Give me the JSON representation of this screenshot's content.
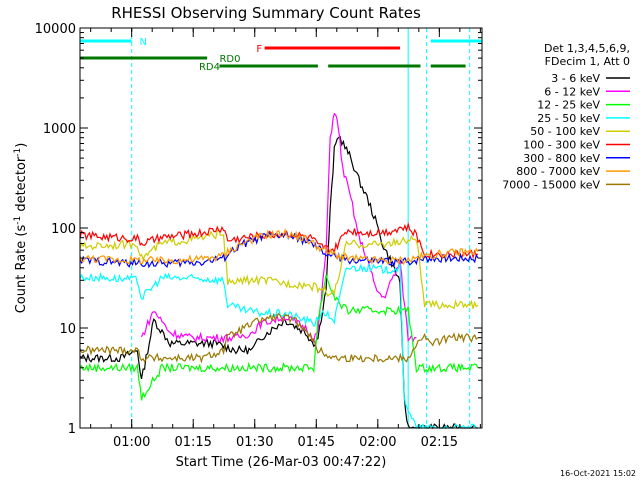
{
  "chart_data": {
    "type": "line",
    "title": "RHESSI Observing Summary Count Rates",
    "xlabel": "Start Time (26-Mar-03 00:47:22)",
    "ylabel_main": "Count Rate (s",
    "ylabel_sup1": "-1",
    "ylabel_mid": " detector",
    "ylabel_sup2": "-1",
    "ylabel_end": ")",
    "x_unit": "minutes since 00:47:22",
    "xlim": [
      0,
      98
    ],
    "ylim": [
      1,
      10000
    ],
    "yscale": "log",
    "x_ticks": [
      {
        "label": "01:00",
        "value": 12.6
      },
      {
        "label": "01:15",
        "value": 27.6
      },
      {
        "label": "01:30",
        "value": 42.6
      },
      {
        "label": "01:45",
        "value": 57.6
      },
      {
        "label": "02:00",
        "value": 72.6
      },
      {
        "label": "02:15",
        "value": 87.6
      }
    ],
    "y_ticks": [
      {
        "label": "1",
        "value": 1
      },
      {
        "label": "10",
        "value": 10
      },
      {
        "label": "100",
        "value": 100
      },
      {
        "label": "1000",
        "value": 1000
      },
      {
        "label": "10000",
        "value": 10000
      }
    ],
    "legend_header": [
      "Det 1,3,4,5,6,9,",
      "FDecim 1, Att 0"
    ],
    "legend_placement": "right",
    "series": [
      {
        "name": "3 - 6 keV",
        "color": "#000000",
        "x": [
          0,
          5,
          10,
          14,
          15,
          18,
          22,
          27,
          33,
          38,
          42,
          44,
          50,
          55,
          57,
          58,
          60,
          61,
          62,
          63,
          65,
          66,
          68,
          70,
          72,
          74,
          76,
          77,
          78,
          79,
          80,
          82,
          84,
          86,
          88,
          90,
          93,
          95,
          97
        ],
        "y": [
          5,
          5,
          5,
          6,
          3,
          12,
          7,
          7,
          7,
          6,
          6,
          8,
          12,
          9,
          7,
          8,
          25,
          150,
          600,
          850,
          600,
          500,
          300,
          200,
          120,
          65,
          45,
          35,
          30,
          2,
          1,
          1,
          1,
          1,
          1,
          1,
          1,
          1,
          1
        ]
      },
      {
        "name": "6 - 12 keV",
        "color": "#ff00ff",
        "x": [
          15,
          18,
          22,
          27,
          33,
          38,
          42,
          44,
          50,
          55,
          57,
          58,
          60,
          61,
          62,
          63,
          64,
          66,
          68,
          70,
          72,
          74,
          76,
          78,
          80,
          82
        ],
        "y": [
          8,
          15,
          9,
          8,
          8,
          8,
          9,
          11,
          13,
          10,
          8,
          9,
          60,
          800,
          1500,
          1000,
          400,
          200,
          80,
          50,
          25,
          20,
          30,
          45,
          8,
          8
        ]
      },
      {
        "name": "12 - 25 keV",
        "color": "#00ff00",
        "x": [
          0,
          10,
          14,
          15,
          20,
          30,
          35,
          36,
          40,
          45,
          50,
          55,
          57,
          58,
          59,
          60,
          61,
          63,
          65,
          80,
          82,
          84,
          86,
          90,
          97
        ],
        "y": [
          4,
          4,
          4,
          2,
          4,
          4,
          4,
          4,
          4,
          4,
          4,
          4,
          4,
          12,
          20,
          35,
          25,
          18,
          15,
          15,
          4,
          4,
          4,
          4,
          4
        ]
      },
      {
        "name": "25 - 50 keV",
        "color": "#00ffff",
        "x": [
          0,
          5,
          10,
          14,
          15,
          20,
          30,
          35,
          36,
          40,
          45,
          50,
          55,
          57,
          58,
          60,
          62,
          65,
          70,
          75,
          78,
          79,
          82,
          84,
          86,
          90,
          97
        ],
        "y": [
          32,
          32,
          31,
          30,
          20,
          32,
          31,
          30,
          17,
          15,
          14,
          14,
          12,
          11,
          13,
          14,
          12,
          40,
          40,
          38,
          40,
          2,
          1,
          1,
          1,
          1,
          1
        ]
      },
      {
        "name": "50 - 100 keV",
        "color": "#cccc00",
        "x": [
          0,
          5,
          10,
          14,
          15,
          20,
          30,
          35,
          36,
          40,
          45,
          50,
          55,
          57,
          58,
          59,
          60,
          62,
          65,
          70,
          75,
          78,
          80,
          82,
          84,
          86,
          90,
          97
        ],
        "y": [
          65,
          67,
          68,
          70,
          50,
          70,
          80,
          90,
          28,
          30,
          30,
          28,
          27,
          26,
          25,
          25,
          23,
          22,
          70,
          68,
          70,
          72,
          75,
          80,
          17,
          17,
          17,
          17
        ]
      },
      {
        "name": "100 - 300 keV",
        "color": "#ff0000",
        "x": [
          0,
          5,
          10,
          14,
          15,
          20,
          30,
          35,
          36,
          40,
          45,
          50,
          55,
          57,
          58,
          59,
          60,
          62,
          65,
          70,
          75,
          78,
          80,
          82,
          84,
          86,
          90,
          97
        ],
        "y": [
          85,
          82,
          80,
          78,
          70,
          80,
          90,
          100,
          75,
          80,
          85,
          88,
          82,
          78,
          65,
          65,
          62,
          60,
          95,
          90,
          92,
          100,
          100,
          85,
          55,
          55,
          55,
          55
        ]
      },
      {
        "name": "300 - 800 keV",
        "color": "#0000ff",
        "x": [
          0,
          10,
          20,
          30,
          35,
          36,
          40,
          45,
          50,
          55,
          60,
          65,
          70,
          75,
          80,
          82,
          84,
          88,
          92,
          97
        ],
        "y": [
          48,
          45,
          44,
          46,
          50,
          55,
          70,
          82,
          85,
          75,
          55,
          48,
          47,
          46,
          46,
          48,
          50,
          50,
          50,
          50
        ]
      },
      {
        "name": "800 - 7000 keV",
        "color": "#ff9900",
        "x": [
          0,
          10,
          20,
          30,
          35,
          36,
          40,
          45,
          50,
          55,
          60,
          65,
          70,
          75,
          80,
          84,
          88,
          92,
          97
        ],
        "y": [
          50,
          48,
          47,
          49,
          53,
          58,
          72,
          85,
          88,
          78,
          58,
          50,
          48,
          47,
          48,
          52,
          55,
          57,
          58
        ]
      },
      {
        "name": "7000 - 15000 keV",
        "color": "#997700",
        "x": [
          0,
          5,
          10,
          14,
          15,
          20,
          30,
          35,
          36,
          40,
          44,
          48,
          52,
          55,
          58,
          62,
          65,
          70,
          75,
          80,
          82,
          84,
          86,
          90,
          97
        ],
        "y": [
          6,
          6,
          6,
          6,
          5,
          5,
          5,
          6,
          8,
          10,
          12,
          13,
          12,
          10,
          6,
          5,
          5,
          5,
          5,
          5,
          7,
          8,
          7,
          8,
          8
        ]
      }
    ],
    "bars": [
      {
        "label": "N",
        "color": "#00ffff",
        "segments": [
          [
            0,
            12.6
          ],
          [
            85.5,
            98
          ]
        ],
        "level": 1,
        "label_x": 14.5
      },
      {
        "label": "RD0",
        "color": "#007700",
        "segments": [
          [
            0,
            31
          ]
        ],
        "level": 2,
        "label_x": 34
      },
      {
        "label": "F",
        "color": "#ff0000",
        "segments": [
          [
            45,
            78
          ]
        ],
        "level": 0,
        "label_x": 43
      },
      {
        "label": "RD4",
        "color": "#007700",
        "segments": [
          [
            34,
            58
          ],
          [
            60.5,
            83
          ]
        ],
        "level": 3,
        "label_x": 29
      },
      {
        "label": "",
        "color": "#007700",
        "segments": [
          [
            85.5,
            94
          ]
        ],
        "level": 3,
        "label_x": null
      }
    ],
    "vlines": [
      {
        "x": 0,
        "color": "#00ffff",
        "style": "solid"
      },
      {
        "x": 12.6,
        "color": "#00ffff",
        "style": "dashed"
      },
      {
        "x": 80,
        "color": "#00ffff",
        "style": "solid"
      },
      {
        "x": 84.5,
        "color": "#00ffff",
        "style": "dashed"
      },
      {
        "x": 95,
        "color": "#00ffff",
        "style": "dashed"
      }
    ]
  },
  "footer_timestamp": "16-Oct-2021 15:02"
}
